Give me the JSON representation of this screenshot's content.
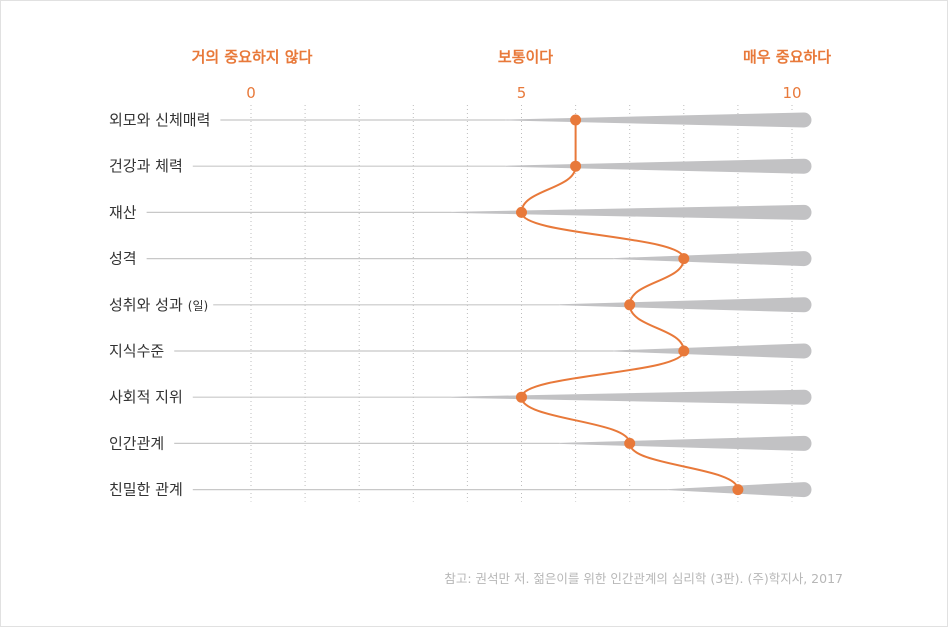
{
  "chart_data": {
    "type": "line",
    "header_labels": [
      "거의 중요하지 않다",
      "보통이다",
      "매우 중요하다"
    ],
    "x_ticks": [
      0,
      5,
      10
    ],
    "xlim": [
      0,
      10
    ],
    "categories": [
      "외모와 신체매력",
      "건강과 체력",
      "재산",
      "성격",
      "성취와 성과",
      "지식수준",
      "사회적 지위",
      "인간관계",
      "친밀한 관계"
    ],
    "category_suffixes": [
      "",
      "",
      "",
      "",
      "(일)",
      "",
      "",
      "",
      ""
    ],
    "values": [
      6,
      6,
      5,
      8,
      7,
      8,
      5,
      7,
      9
    ],
    "grid": true,
    "note": "참고: 권석만 저. 젊은이를 위한 인간관계의 심리학 (3판). (주)학지사, 2017",
    "colors": {
      "accent": "#e8793a",
      "bar": "#c2c2c4",
      "text": "#333333",
      "tick": "#e8793a",
      "grid": "#bdbdbd",
      "note": "#b7b7b7"
    }
  }
}
